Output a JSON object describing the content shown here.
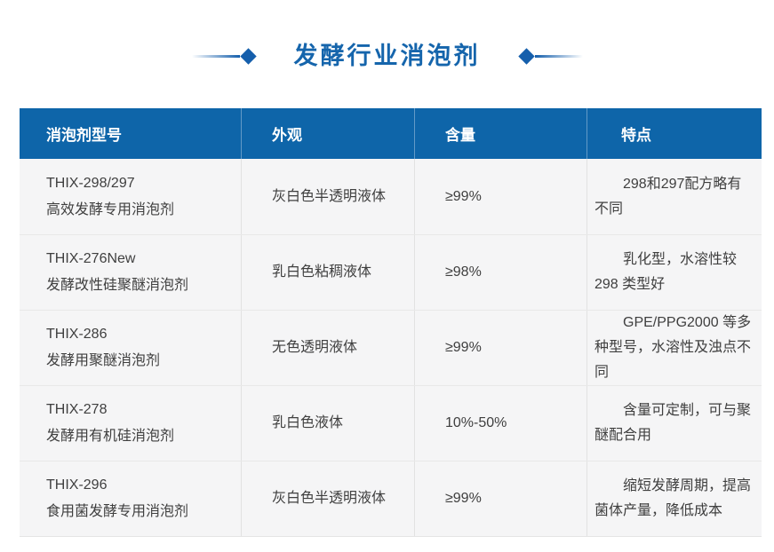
{
  "header": {
    "title": "发酵行业消泡剂"
  },
  "colors": {
    "header_bg": "#0e65a9",
    "title_text": "#1565ac",
    "accent_diamond": "#155fac",
    "row_bg": "#f5f5f6",
    "body_text": "#3f3f3f",
    "divider": "#e2e2e2"
  },
  "table": {
    "columns": [
      "消泡剂型号",
      "外观",
      "含量",
      "特点"
    ],
    "rows": [
      {
        "model_line1": "THIX-298/297",
        "model_line2": "高效发酵专用消泡剂",
        "appearance": "灰白色半透明液体",
        "content": "≥99%",
        "features": "298和297配方略有不同"
      },
      {
        "model_line1": "THIX-276New",
        "model_line2": "发酵改性硅聚醚消泡剂",
        "appearance": "乳白色粘稠液体",
        "content": "≥98%",
        "features": "乳化型，水溶性较 298 类型好"
      },
      {
        "model_line1": "THIX-286",
        "model_line2": "发酵用聚醚消泡剂",
        "appearance": "无色透明液体",
        "content": "≥99%",
        "features": "GPE/PPG2000 等多种型号，水溶性及浊点不同"
      },
      {
        "model_line1": "THIX-278",
        "model_line2": "发酵用有机硅消泡剂",
        "appearance": "乳白色液体",
        "content": "10%-50%",
        "features": "含量可定制，可与聚醚配合用"
      },
      {
        "model_line1": "THIX-296",
        "model_line2": "食用菌发酵专用消泡剂",
        "appearance": "灰白色半透明液体",
        "content": "≥99%",
        "features": "缩短发酵周期，提高菌体产量，降低成本"
      }
    ]
  }
}
